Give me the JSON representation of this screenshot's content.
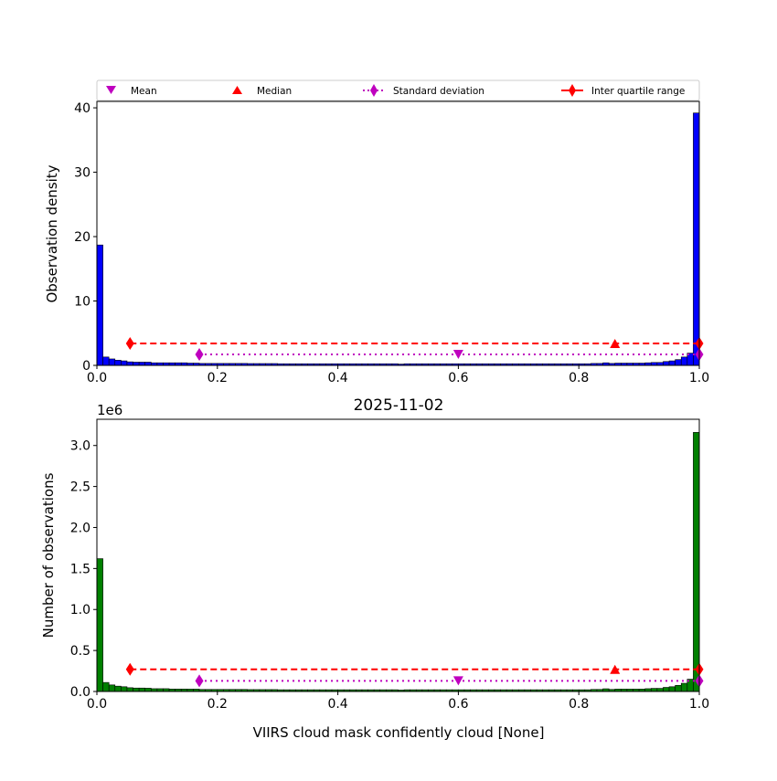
{
  "chart_data": [
    {
      "type": "bar",
      "panel": "top",
      "ylabel": "Observation density",
      "xlim": [
        0,
        1
      ],
      "ylim": [
        0,
        41
      ],
      "xticks": [
        "0.0",
        "0.2",
        "0.4",
        "0.6",
        "0.8",
        "1.0"
      ],
      "yticks": [
        "0",
        "10",
        "20",
        "30",
        "40"
      ],
      "bin_width": 0.01,
      "bar_color": "#0000ff",
      "values": [
        18.7,
        1.3,
        1.0,
        0.8,
        0.7,
        0.55,
        0.5,
        0.5,
        0.5,
        0.4,
        0.4,
        0.4,
        0.4,
        0.4,
        0.4,
        0.35,
        0.35,
        0.3,
        0.3,
        0.3,
        0.3,
        0.3,
        0.3,
        0.3,
        0.3,
        0.28,
        0.28,
        0.28,
        0.28,
        0.28,
        0.25,
        0.25,
        0.25,
        0.25,
        0.25,
        0.25,
        0.25,
        0.25,
        0.25,
        0.25,
        0.25,
        0.25,
        0.25,
        0.25,
        0.25,
        0.25,
        0.25,
        0.25,
        0.25,
        0.25,
        0.2,
        0.25,
        0.25,
        0.25,
        0.25,
        0.25,
        0.25,
        0.25,
        0.25,
        0.25,
        0.25,
        0.25,
        0.25,
        0.25,
        0.25,
        0.25,
        0.25,
        0.25,
        0.25,
        0.25,
        0.25,
        0.25,
        0.25,
        0.25,
        0.25,
        0.25,
        0.25,
        0.25,
        0.25,
        0.25,
        0.25,
        0.25,
        0.3,
        0.3,
        0.4,
        0.3,
        0.35,
        0.35,
        0.35,
        0.35,
        0.35,
        0.4,
        0.45,
        0.45,
        0.6,
        0.7,
        0.9,
        1.3,
        1.9,
        39.2
      ],
      "markers": {
        "mean": [
          0.6,
          1.7
        ],
        "median": [
          0.86,
          3.4
        ],
        "std_range": [
          0.17,
          1.0,
          1.7
        ],
        "iqr_range": [
          0.055,
          1.0,
          3.4
        ]
      }
    },
    {
      "type": "bar",
      "panel": "bottom",
      "title": "2025-11-02",
      "xlabel": "VIIRS cloud mask confidently cloud [None]",
      "ylabel": "Number of observations",
      "offset_label": "1e6",
      "xlim": [
        0,
        1
      ],
      "ylim": [
        0,
        3.32
      ],
      "xticks": [
        "0.0",
        "0.2",
        "0.4",
        "0.6",
        "0.8",
        "1.0"
      ],
      "yticks": [
        "0.0",
        "0.5",
        "1.0",
        "1.5",
        "2.0",
        "2.5",
        "3.0"
      ],
      "bin_width": 0.01,
      "bar_color": "#008000",
      "values": [
        1.62,
        0.11,
        0.08,
        0.065,
        0.058,
        0.046,
        0.042,
        0.042,
        0.04,
        0.034,
        0.034,
        0.034,
        0.03,
        0.03,
        0.03,
        0.029,
        0.029,
        0.025,
        0.025,
        0.025,
        0.025,
        0.025,
        0.025,
        0.025,
        0.025,
        0.023,
        0.023,
        0.023,
        0.023,
        0.023,
        0.021,
        0.021,
        0.021,
        0.021,
        0.021,
        0.021,
        0.021,
        0.021,
        0.021,
        0.021,
        0.021,
        0.021,
        0.021,
        0.021,
        0.021,
        0.021,
        0.021,
        0.021,
        0.021,
        0.021,
        0.017,
        0.021,
        0.021,
        0.021,
        0.021,
        0.021,
        0.021,
        0.021,
        0.021,
        0.021,
        0.021,
        0.021,
        0.021,
        0.021,
        0.021,
        0.021,
        0.021,
        0.021,
        0.021,
        0.021,
        0.021,
        0.021,
        0.021,
        0.021,
        0.021,
        0.021,
        0.021,
        0.021,
        0.021,
        0.021,
        0.021,
        0.021,
        0.025,
        0.025,
        0.033,
        0.025,
        0.029,
        0.029,
        0.029,
        0.029,
        0.029,
        0.034,
        0.038,
        0.038,
        0.05,
        0.058,
        0.075,
        0.1,
        0.15,
        3.16
      ],
      "markers": {
        "mean": [
          0.6,
          0.13
        ],
        "median": [
          0.86,
          0.27
        ],
        "std_range": [
          0.17,
          1.0,
          0.13
        ],
        "iqr_range": [
          0.055,
          1.0,
          0.27
        ]
      }
    }
  ],
  "legend": {
    "placement": "top",
    "entries": [
      "Mean",
      "Median",
      "Standard deviation",
      "Inter quartile range"
    ]
  }
}
